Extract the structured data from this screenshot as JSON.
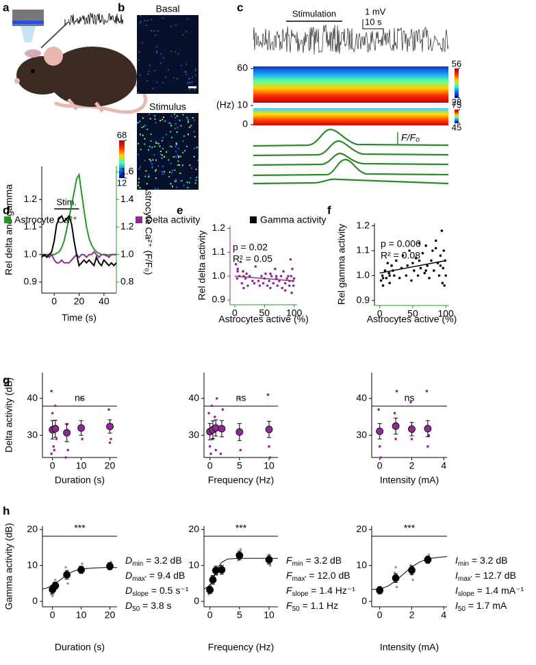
{
  "panel_labels": [
    "a",
    "b",
    "c",
    "d",
    "e",
    "f",
    "g",
    "h"
  ],
  "panel_b": {
    "titles": [
      "Basal",
      "Stimulus"
    ],
    "colorbar_ticks": [
      68,
      12
    ]
  },
  "panel_c": {
    "stimulation": "Stimulation",
    "scale_y": "1 mV",
    "scale_x": "10 s",
    "freq_unit": "(Hz)",
    "freq_ticks": [
      60,
      10,
      0
    ],
    "colorbar_1": [
      56,
      28
    ],
    "colorbar_2": [
      75,
      45
    ],
    "trace_label": "F/F₀"
  },
  "chart_data": [
    {
      "type": "line",
      "xlabel": "Time (s)",
      "ylabel": "Rel delta and gamma",
      "y2label": "Astrocyte Ca²⁺ (F/F₀)",
      "stim": {
        "label": "Stim.",
        "x": [
          0,
          20
        ]
      },
      "xlim": [
        -10,
        50
      ],
      "xticks": [
        0,
        20,
        40
      ],
      "ylim": [
        0.86,
        1.32
      ],
      "yticks": [
        0.9,
        {
          "value": 1,
          "label": "1.0"
        },
        1.1,
        1.2
      ],
      "y2lim": [
        0.72,
        1.64
      ],
      "y2ticks": [
        0.8,
        {
          "value": 1,
          "label": "1.0"
        },
        1.2,
        1.4,
        1.6
      ],
      "x": [
        -10,
        -8,
        -6,
        -4,
        -2,
        0,
        2,
        4,
        6,
        8,
        10,
        12,
        14,
        16,
        18,
        20,
        22,
        24,
        26,
        28,
        30,
        32,
        34,
        36,
        38,
        40,
        42,
        44,
        46,
        48,
        50
      ],
      "series": [
        {
          "name": "Astrocyte Ca²⁺",
          "color": "#1f9a1f",
          "axis": "y2",
          "values": [
            1.0,
            0.99,
            1.0,
            1.0,
            1.0,
            1.0,
            1.01,
            1.02,
            1.05,
            1.1,
            1.18,
            1.27,
            1.36,
            1.45,
            1.55,
            1.58,
            1.45,
            1.32,
            1.2,
            1.12,
            1.07,
            1.04,
            1.02,
            1.01,
            1.0,
            1.0,
            0.99,
            1.0,
            1.0,
            1.0,
            1.0
          ]
        },
        {
          "name": "Delta activity",
          "color": "#8e2a92",
          "values": [
            1.0,
            1.0,
            1.0,
            0.99,
            1.0,
            0.98,
            0.97,
            0.97,
            0.98,
            0.97,
            0.97,
            0.97,
            0.98,
            0.99,
            1.0,
            0.99,
            1.0,
            1.0,
            0.99,
            1.0,
            1.0,
            1.01,
            1.0,
            0.99,
            1.0,
            1.0,
            1.0,
            0.99,
            1.0,
            1.0,
            1.0
          ]
        },
        {
          "name": "Gamma activity",
          "color": "#000000",
          "values": [
            0.99,
            1.0,
            0.99,
            1.0,
            1.01,
            1.05,
            1.11,
            1.13,
            1.14,
            1.12,
            1.13,
            1.14,
            1.11,
            1.05,
            1.0,
            0.96,
            0.97,
            0.98,
            0.97,
            0.98,
            0.97,
            0.96,
            0.99,
            0.97,
            0.96,
            0.98,
            0.97,
            0.96,
            0.97,
            0.96,
            0.97
          ]
        }
      ]
    },
    {
      "type": "scatter",
      "xlabel": "Astrocytes active (%)",
      "ylabel": "Rel delta activity",
      "color": "#8e2a92",
      "xaxis_color": "#1f9a1f",
      "yaxis_color": "#8e2a92",
      "annotations": [
        "p = 0.02",
        "R² = 0.05"
      ],
      "annotation_color": "#1f9a1f",
      "xlim": [
        -8,
        105
      ],
      "xticks": [
        0,
        50,
        100
      ],
      "ylim": [
        0.88,
        1.21
      ],
      "yticks": [
        0.9,
        {
          "value": 1,
          "label": "1.0"
        },
        1.1,
        1.2
      ],
      "x": [
        2,
        4,
        5,
        8,
        10,
        12,
        14,
        15,
        18,
        20,
        22,
        25,
        30,
        33,
        35,
        40,
        42,
        45,
        48,
        50,
        52,
        55,
        58,
        60,
        62,
        65,
        68,
        70,
        72,
        75,
        78,
        80,
        82,
        85,
        88,
        90,
        92,
        94,
        95,
        96,
        97,
        98,
        99,
        100,
        60,
        70,
        85,
        5,
        15,
        92
      ],
      "y": [
        1.05,
        0.99,
        1.03,
        1.0,
        1.06,
        0.97,
        1.02,
        0.95,
        0.99,
        1.01,
        0.96,
        1.0,
        0.98,
        0.97,
        1.04,
        0.98,
        0.96,
        1.0,
        0.97,
        0.99,
        1.01,
        0.96,
        0.98,
        0.95,
        1.0,
        0.97,
        1.03,
        0.99,
        0.96,
        0.98,
        1.0,
        0.95,
        1.02,
        0.97,
        0.99,
        1.0,
        0.96,
        1.07,
        1.0,
        0.93,
        1.03,
        0.98,
        0.96,
        0.99,
        1.01,
        1.0,
        0.94,
        1.02,
        1.0,
        0.98
      ],
      "fit": {
        "x": [
          0,
          100
        ],
        "y": [
          1.0,
          0.98
        ]
      }
    },
    {
      "type": "scatter",
      "xlabel": "Astrocytes active (%)",
      "ylabel": "Rel gamma activity",
      "color": "#000000",
      "xaxis_color": "#1f9a1f",
      "yaxis_color": "#000000",
      "annotations": [
        "p = 0.006",
        "R² = 0.08"
      ],
      "annotation_color": "#1f9a1f",
      "xlim": [
        -8,
        105
      ],
      "xticks": [
        0,
        50,
        100
      ],
      "ylim": [
        0.88,
        1.21
      ],
      "yticks": [
        0.9,
        {
          "value": 1,
          "label": "1.0"
        },
        1.1,
        1.2
      ],
      "x": [
        2,
        4,
        5,
        8,
        10,
        12,
        14,
        15,
        18,
        20,
        22,
        25,
        30,
        33,
        35,
        40,
        42,
        45,
        48,
        50,
        52,
        55,
        58,
        60,
        62,
        65,
        68,
        70,
        72,
        75,
        78,
        80,
        82,
        85,
        88,
        90,
        92,
        94,
        95,
        96,
        97,
        98,
        99,
        100,
        60,
        70,
        85,
        5,
        15,
        92
      ],
      "y": [
        0.98,
        1.0,
        0.96,
        1.02,
        0.99,
        1.05,
        1.01,
        0.97,
        1.04,
        1.02,
        1.0,
        1.06,
        0.99,
        1.03,
        1.08,
        1.0,
        1.04,
        1.1,
        0.98,
        1.05,
        1.02,
        1.07,
        1.0,
        1.13,
        1.03,
        1.09,
        1.01,
        1.12,
        1.04,
        0.99,
        1.06,
        1.1,
        1.02,
        1.14,
        1.05,
        1.0,
        1.08,
        1.18,
        0.97,
        1.03,
        1.1,
        0.96,
        1.06,
        1.0,
        1.06,
        1.02,
        1.11,
        0.99,
        1.0,
        1.04
      ],
      "fit": {
        "x": [
          0,
          100
        ],
        "y": [
          1.01,
          1.06
        ]
      }
    },
    {
      "type": "errorbar",
      "xlabel": "Duration (s)",
      "ylabel": "Delta activity (dB)",
      "annotation": "ns",
      "color": "#8e2a92",
      "point_color": "#8e2a92",
      "xlim": [
        -3.5,
        22.5
      ],
      "xticks": [
        0,
        10,
        20
      ],
      "ylim": [
        24,
        47
      ],
      "yticks": [
        30,
        40
      ],
      "x": [
        0,
        1,
        5,
        10,
        20
      ],
      "values": [
        31.5,
        31.8,
        30.7,
        32,
        32.4
      ],
      "errors": [
        2.5,
        2.3,
        2.4,
        2.0,
        1.8
      ],
      "points": {
        "x": [
          0,
          0,
          0,
          0,
          1,
          1,
          1,
          5,
          5,
          5,
          10,
          10,
          20,
          20,
          20
        ],
        "y": [
          42,
          36,
          27,
          25,
          38,
          29,
          26,
          33,
          26,
          24,
          40,
          29,
          37,
          28,
          29
        ]
      }
    },
    {
      "type": "errorbar",
      "xlabel": "Frequency (Hz)",
      "annotation": "ns",
      "color": "#8e2a92",
      "point_color": "#8e2a92",
      "xlim": [
        -1,
        11.5
      ],
      "xticks": [
        0,
        5,
        10
      ],
      "ylim": [
        24,
        47
      ],
      "yticks": [
        30,
        40
      ],
      "x": [
        0,
        0.5,
        1,
        2,
        5,
        10
      ],
      "values": [
        31,
        31.5,
        32,
        31.8,
        30.9,
        31.6
      ],
      "errors": [
        2.2,
        2.4,
        2.2,
        2.2,
        2.3,
        2.2
      ],
      "points": {
        "x": [
          0,
          0,
          0,
          0.5,
          0.5,
          1,
          1,
          1,
          2,
          2,
          5,
          5,
          10,
          10,
          10
        ],
        "y": [
          36,
          27,
          25,
          38,
          29,
          40,
          35,
          26,
          37,
          25,
          40,
          26,
          41,
          27,
          24
        ]
      }
    },
    {
      "type": "errorbar",
      "xlabel": "Intensity (mA)",
      "annotation": "ns",
      "color": "#8e2a92",
      "point_color": "#8e2a92",
      "xlim": [
        -0.5,
        4.2
      ],
      "xticks": [
        0,
        2,
        4
      ],
      "ylim": [
        24,
        47
      ],
      "yticks": [
        30,
        40
      ],
      "x": [
        0,
        1,
        2,
        3
      ],
      "values": [
        31.1,
        32.5,
        31.7,
        31.8
      ],
      "errors": [
        2.1,
        2.2,
        1.8,
        2.2
      ],
      "points": {
        "x": [
          0,
          0,
          0,
          1,
          1,
          1,
          2,
          2,
          2,
          3,
          3,
          3
        ],
        "y": [
          37,
          27,
          24,
          36,
          29,
          42,
          39,
          29,
          31,
          42,
          27,
          30
        ]
      }
    },
    {
      "type": "errorbar",
      "xlabel": "Duration (s)",
      "ylabel": "Gamma activity (dB)",
      "annotation": "***",
      "color": "#000000",
      "point_color": "#9a9a9a",
      "xlim": [
        -3.5,
        22.5
      ],
      "xticks": [
        0,
        10,
        20
      ],
      "ylim": [
        -1.5,
        21
      ],
      "yticks": [
        0,
        10,
        20
      ],
      "x": [
        0,
        1,
        5,
        10,
        20
      ],
      "values": [
        3.3,
        4.4,
        7.4,
        8.8,
        9.8
      ],
      "errors": [
        1.2,
        1.0,
        1.2,
        1.0,
        1.0
      ],
      "points": {
        "x": [
          0,
          0,
          0,
          1,
          1,
          5,
          5,
          5,
          10,
          10,
          10,
          20,
          20,
          20
        ],
        "y": [
          2,
          1.5,
          5,
          3,
          6,
          5,
          9.5,
          8,
          10.5,
          8,
          8.5,
          11,
          9,
          10.5
        ]
      },
      "fit": {
        "x": [
          -3.5,
          -2,
          0,
          2,
          4,
          6,
          8,
          10,
          14,
          18,
          22.5
        ],
        "y": [
          3.4,
          3.7,
          4.5,
          5.6,
          6.8,
          7.9,
          8.6,
          9.0,
          9.3,
          9.4,
          9.4
        ]
      },
      "params": [
        {
          "var": "D",
          "sub": "min",
          "text": " = 3.2 dB"
        },
        {
          "var": "D",
          "sub": "max'",
          "text": " = 9.4 dB"
        },
        {
          "var": "D",
          "sub": "slope",
          "text": " = 0.5 s⁻¹"
        },
        {
          "var": "D",
          "sub": "50",
          "text": " = 3.8 s"
        }
      ]
    },
    {
      "type": "errorbar",
      "xlabel": "Frequency (Hz)",
      "annotation": "***",
      "color": "#000000",
      "point_color": "#9a9a9a",
      "xlim": [
        -1,
        11.5
      ],
      "xticks": [
        0,
        5,
        10
      ],
      "ylim": [
        -1.5,
        21
      ],
      "yticks": [
        0,
        10,
        20
      ],
      "x": [
        0,
        0.5,
        1,
        2,
        5,
        10
      ],
      "values": [
        3.2,
        6.0,
        8.6,
        8.8,
        12.8,
        11.6
      ],
      "errors": [
        1.0,
        1.2,
        1.2,
        1.2,
        1.2,
        1.2
      ],
      "points": {
        "x": [
          0,
          0,
          0.5,
          0.5,
          1,
          1,
          2,
          2,
          5,
          5,
          10,
          10
        ],
        "y": [
          2,
          4.5,
          5.5,
          7,
          9.5,
          7.5,
          10,
          8,
          14.5,
          11.5,
          13,
          10
        ]
      },
      "fit": {
        "x": [
          -1,
          0,
          0.5,
          1,
          1.5,
          2,
          3,
          5,
          8,
          11.5
        ],
        "y": [
          3.4,
          4.5,
          6.0,
          8.0,
          9.8,
          10.9,
          11.8,
          12.0,
          12.0,
          12.0
        ]
      },
      "params": [
        {
          "var": "F",
          "sub": "min",
          "text": " = 3.2 dB"
        },
        {
          "var": "F",
          "sub": "max'",
          "text": " = 12.0 dB"
        },
        {
          "var": "F",
          "sub": "slope",
          "text": " = 1.4 Hz⁻¹"
        },
        {
          "var": "F",
          "sub": "50",
          "text": " = 1.1 Hz"
        }
      ]
    },
    {
      "type": "errorbar",
      "xlabel": "Intensity (mA)",
      "annotation": "***",
      "color": "#000000",
      "point_color": "#9a9a9a",
      "xlim": [
        -0.5,
        4.2
      ],
      "xticks": [
        0,
        2,
        4
      ],
      "ylim": [
        -1.5,
        21
      ],
      "yticks": [
        0,
        10,
        20
      ],
      "x": [
        0,
        1,
        2,
        3
      ],
      "values": [
        3.1,
        6.5,
        8.7,
        11.6
      ],
      "errors": [
        1.0,
        1.2,
        1.2,
        1.0
      ],
      "points": {
        "x": [
          0,
          0,
          1,
          1,
          1,
          2,
          2,
          2,
          3,
          3,
          3
        ],
        "y": [
          2.5,
          4,
          4,
          8,
          9.5,
          6,
          10,
          7.5,
          13,
          11,
          12
        ]
      },
      "fit": {
        "x": [
          -0.5,
          0,
          0.5,
          1,
          1.5,
          2,
          2.5,
          3,
          3.5,
          4.2
        ],
        "y": [
          3.3,
          3.5,
          4.2,
          5.7,
          7.7,
          9.6,
          11.0,
          11.8,
          12.2,
          12.5
        ]
      },
      "params": [
        {
          "var": "I",
          "sub": "min",
          "text": " = 3.2 dB"
        },
        {
          "var": "I",
          "sub": "max'",
          "text": " = 12.7 dB"
        },
        {
          "var": "I",
          "sub": "slope",
          "text": " = 1.4 mA⁻¹"
        },
        {
          "var": "I",
          "sub": "50",
          "text": " = 1.7 mA"
        }
      ]
    }
  ]
}
